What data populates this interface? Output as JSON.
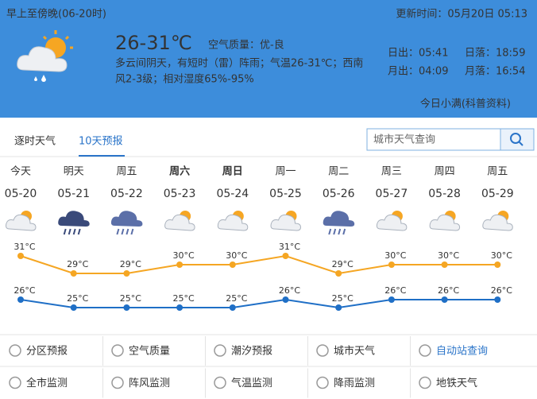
{
  "header": {
    "period": "早上至傍晚(06-20时)",
    "update_time": "更新时间：05月20日 05:13",
    "temperature": "26-31℃",
    "air_quality": "空气质量：优-良",
    "description_lines": [
      "多云间阴天，有短时（雷）阵雨；气温26-31℃；西南",
      "风2-3级；相对湿度65%-95%"
    ],
    "sunrise": "日出：05:41",
    "sunset": "日落：18:59",
    "moonrise": "月出：04:09",
    "moonset": "月落：16:54",
    "solar_term": "今日小满(科普资料)"
  },
  "tabs": [
    "逐时天气",
    "10天预报"
  ],
  "search_placeholder": "城市天气查询",
  "forecast": {
    "days": [
      "今天",
      "明天",
      "周五",
      "周六",
      "周日",
      "周一",
      "周二",
      "周三",
      "周四",
      "周五"
    ],
    "bold": [
      false,
      false,
      false,
      true,
      true,
      false,
      false,
      false,
      false,
      false
    ],
    "dates": [
      "05-20",
      "05-21",
      "05-22",
      "05-23",
      "05-24",
      "05-25",
      "05-26",
      "05-27",
      "05-28",
      "05-29"
    ],
    "high": [
      31,
      29,
      29,
      30,
      30,
      31,
      29,
      30,
      30,
      30
    ],
    "high_labels": [
      "31°C",
      "29°C",
      "29°C",
      "30°C",
      "30°C",
      "31°C",
      "29°C",
      "30°C",
      "30°C",
      "30°C"
    ],
    "high_color": "#f5a623",
    "low": [
      26,
      25,
      25,
      25,
      25,
      26,
      25,
      26,
      26,
      26
    ],
    "low_labels": [
      "26°C",
      "25°C",
      "25°C",
      "25°C",
      "25°C",
      "26°C",
      "25°C",
      "26°C",
      "26°C",
      "26°C"
    ],
    "low_color": "#1f6fc6"
  },
  "links": [
    [
      "分区预报",
      "空气质量",
      "潮汐预报",
      "城市天气",
      "自动站查询"
    ],
    [
      "全市监测",
      "阵风监测",
      "气温监测",
      "降雨监测",
      "地铁天气"
    ]
  ]
}
